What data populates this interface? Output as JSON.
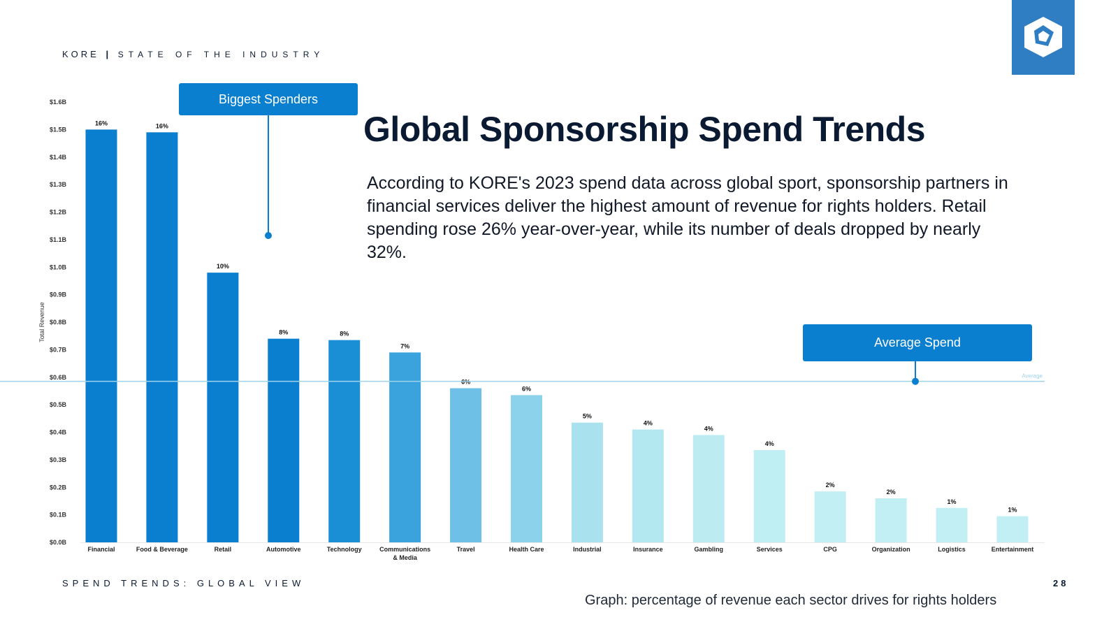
{
  "header": {
    "brand": "KORE",
    "separator": "|",
    "subtitle": "STATE OF THE INDUSTRY",
    "logo_icon": "hexagon-logo-icon",
    "logo_color": "#2f7dc3"
  },
  "main": {
    "title": "Global Sponsorship Spend Trends",
    "description": "According to KORE's 2023 spend data across global sport, sponsorship partners in financial services deliver the highest amount of revenue for rights holders. Retail spending rose 26% year-over-year, while its number of deals dropped by nearly 32%.",
    "callout_biggest": "Biggest Spenders",
    "callout_average": "Average Spend"
  },
  "footer": {
    "section": "SPEND TRENDS: GLOBAL VIEW",
    "page": "28",
    "caption": "Graph: percentage of revenue each sector drives for rights holders"
  },
  "chart_data": {
    "type": "bar",
    "ylabel": "Total Revenue",
    "xlabel": "",
    "ylim": [
      0,
      1.6
    ],
    "yticks": [
      "$0.0B",
      "$0.1B",
      "$0.2B",
      "$0.3B",
      "$0.4B",
      "$0.5B",
      "$0.6B",
      "$0.7B",
      "$0.8B",
      "$0.9B",
      "$1.0B",
      "$1.1B",
      "$1.2B",
      "$1.3B",
      "$1.4B",
      "$1.5B",
      "$1.6B"
    ],
    "categories": [
      "Financial",
      "Food & Beverage",
      "Retail",
      "Automotive",
      "Technology",
      "Communications & Media",
      "Travel",
      "Health Care",
      "Industrial",
      "Insurance",
      "Gambling",
      "Services",
      "CPG",
      "Organization",
      "Logistics",
      "Entertainment"
    ],
    "values": [
      1.5,
      1.49,
      0.98,
      0.74,
      0.735,
      0.69,
      0.56,
      0.535,
      0.435,
      0.41,
      0.39,
      0.335,
      0.185,
      0.16,
      0.125,
      0.095
    ],
    "data_labels": [
      "16%",
      "16%",
      "10%",
      "8%",
      "8%",
      "7%",
      "6%",
      "6%",
      "5%",
      "4%",
      "4%",
      "4%",
      "2%",
      "2%",
      "1%",
      "1%"
    ],
    "colors": [
      "#0a7fcf",
      "#0a7fcf",
      "#0a7fcf",
      "#0a7fcf",
      "#1b8fd6",
      "#3aa3dd",
      "#6ec0e6",
      "#8dd2eb",
      "#a9e2ee",
      "#b4e8f0",
      "#bcecf2",
      "#bfeef3",
      "#c1eff4",
      "#c1eff4",
      "#c1eff4",
      "#c1eff4"
    ],
    "average": 0.585,
    "average_label": "Average",
    "average_color": "#9fd3ea"
  }
}
